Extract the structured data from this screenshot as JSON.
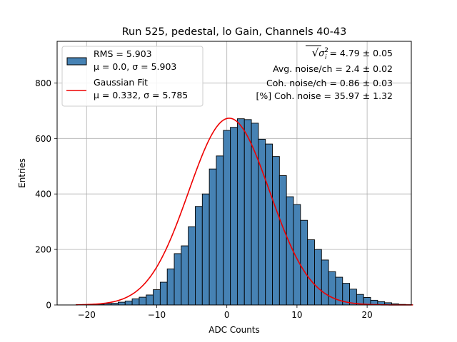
{
  "chart_data": {
    "type": "bar",
    "title": "Run 525, pedestal, lo Gain, Channels 40-43",
    "xlabel": "ADC Counts",
    "ylabel": "Entries",
    "xlim": [
      -24.2,
      26.3
    ],
    "ylim": [
      0,
      950
    ],
    "grid": true,
    "x_ticks": [
      -20,
      -10,
      0,
      10,
      20
    ],
    "x_tick_labels": [
      "−20",
      "−10",
      "0",
      "10",
      "20"
    ],
    "y_ticks": [
      0,
      200,
      400,
      600,
      800
    ],
    "y_tick_labels": [
      "0",
      "200",
      "400",
      "600",
      "800"
    ],
    "bin_width": 1,
    "bin_edges_start": -21.5,
    "bin_counts": [
      1,
      1,
      2,
      3,
      5,
      6,
      10,
      14,
      22,
      28,
      36,
      55,
      82,
      130,
      185,
      213,
      282,
      355,
      400,
      490,
      537,
      629,
      640,
      671,
      668,
      655,
      597,
      580,
      535,
      466,
      390,
      362,
      305,
      235,
      200,
      162,
      120,
      100,
      78,
      57,
      38,
      27,
      17,
      12,
      8,
      4,
      2,
      1
    ],
    "histogram_color": "#4682b4",
    "fit_color": "#ee0000",
    "fit": {
      "mu": 0.332,
      "sigma": 5.785,
      "amplitude": 673
    },
    "legend": {
      "position": "upper-left",
      "entries": [
        {
          "name": "hist",
          "line1": "RMS = 5.903",
          "mu": "0.0",
          "sigma": "5.903"
        },
        {
          "name": "fit",
          "line1": "Gaussian Fit",
          "mu": "0.332",
          "sigma": "5.785"
        }
      ],
      "mu_prefix": "μ = ",
      "sigma_prefix": "σ = ",
      "separator": ", "
    },
    "annotations": {
      "sqrt_sym": "√",
      "sigma_sym": "σ",
      "sup": "2",
      "sub": "i",
      "line1_value": " = 4.79 ± 0.05",
      "line2": "Avg. noise/ch = 2.4 ± 0.02",
      "line3": "Coh. noise/ch = 0.86 ± 0.03",
      "line4": "[%] Coh. noise = 35.97 ± 1.32"
    }
  }
}
